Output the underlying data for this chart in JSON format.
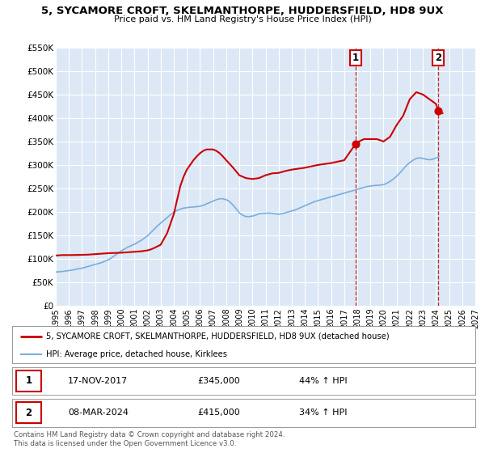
{
  "title": "5, SYCAMORE CROFT, SKELMANTHORPE, HUDDERSFIELD, HD8 9UX",
  "subtitle": "Price paid vs. HM Land Registry's House Price Index (HPI)",
  "hpi_label": "HPI: Average price, detached house, Kirklees",
  "property_label": "5, SYCAMORE CROFT, SKELMANTHORPE, HUDDERSFIELD, HD8 9UX (detached house)",
  "hpi_color": "#7aaddc",
  "property_color": "#cc0000",
  "plot_bg_color": "#dce8f5",
  "grid_color": "#ffffff",
  "ylim": [
    0,
    550000
  ],
  "xlim_start": 1995,
  "xlim_end": 2027,
  "yticks": [
    0,
    50000,
    100000,
    150000,
    200000,
    250000,
    300000,
    350000,
    400000,
    450000,
    500000,
    550000
  ],
  "ytick_labels": [
    "£0",
    "£50K",
    "£100K",
    "£150K",
    "£200K",
    "£250K",
    "£300K",
    "£350K",
    "£400K",
    "£450K",
    "£500K",
    "£550K"
  ],
  "xticks": [
    1995,
    1996,
    1997,
    1998,
    1999,
    2000,
    2001,
    2002,
    2003,
    2004,
    2005,
    2006,
    2007,
    2008,
    2009,
    2010,
    2011,
    2012,
    2013,
    2014,
    2015,
    2016,
    2017,
    2018,
    2019,
    2020,
    2021,
    2022,
    2023,
    2024,
    2025,
    2026,
    2027
  ],
  "sale1_year": 2017.88,
  "sale1_price": 345000,
  "sale1_date": "17-NOV-2017",
  "sale1_label": "44% ↑ HPI",
  "sale2_year": 2024.18,
  "sale2_price": 415000,
  "sale2_date": "08-MAR-2024",
  "sale2_label": "34% ↑ HPI",
  "hpi_x": [
    1995.0,
    1995.25,
    1995.5,
    1995.75,
    1996.0,
    1996.25,
    1996.5,
    1996.75,
    1997.0,
    1997.25,
    1997.5,
    1997.75,
    1998.0,
    1998.25,
    1998.5,
    1998.75,
    1999.0,
    1999.25,
    1999.5,
    1999.75,
    2000.0,
    2000.25,
    2000.5,
    2000.75,
    2001.0,
    2001.25,
    2001.5,
    2001.75,
    2002.0,
    2002.25,
    2002.5,
    2002.75,
    2003.0,
    2003.25,
    2003.5,
    2003.75,
    2004.0,
    2004.25,
    2004.5,
    2004.75,
    2005.0,
    2005.25,
    2005.5,
    2005.75,
    2006.0,
    2006.25,
    2006.5,
    2006.75,
    2007.0,
    2007.25,
    2007.5,
    2007.75,
    2008.0,
    2008.25,
    2008.5,
    2008.75,
    2009.0,
    2009.25,
    2009.5,
    2009.75,
    2010.0,
    2010.25,
    2010.5,
    2010.75,
    2011.0,
    2011.25,
    2011.5,
    2011.75,
    2012.0,
    2012.25,
    2012.5,
    2012.75,
    2013.0,
    2013.25,
    2013.5,
    2013.75,
    2014.0,
    2014.25,
    2014.5,
    2014.75,
    2015.0,
    2015.25,
    2015.5,
    2015.75,
    2016.0,
    2016.25,
    2016.5,
    2016.75,
    2017.0,
    2017.25,
    2017.5,
    2017.75,
    2018.0,
    2018.25,
    2018.5,
    2018.75,
    2019.0,
    2019.25,
    2019.5,
    2019.75,
    2020.0,
    2020.25,
    2020.5,
    2020.75,
    2021.0,
    2021.25,
    2021.5,
    2021.75,
    2022.0,
    2022.25,
    2022.5,
    2022.75,
    2023.0,
    2023.25,
    2023.5,
    2023.75,
    2024.0,
    2024.25
  ],
  "hpi_y": [
    72000,
    72500,
    73000,
    74000,
    75000,
    76000,
    77500,
    79000,
    80000,
    82000,
    84000,
    86000,
    88000,
    90000,
    92000,
    95000,
    98000,
    102000,
    107000,
    112000,
    117000,
    121000,
    125000,
    128000,
    131000,
    135000,
    139000,
    144000,
    149000,
    156000,
    163000,
    170000,
    176000,
    182000,
    188000,
    194000,
    199000,
    203000,
    206000,
    208000,
    209000,
    210000,
    210500,
    211000,
    212000,
    214000,
    217000,
    220000,
    223000,
    226000,
    228000,
    228000,
    226000,
    222000,
    215000,
    207000,
    198000,
    193000,
    190000,
    190000,
    191000,
    193000,
    196000,
    197000,
    197000,
    197500,
    197000,
    196000,
    195000,
    196000,
    198000,
    200000,
    202000,
    204000,
    207000,
    210000,
    213000,
    216000,
    219000,
    222000,
    224000,
    226000,
    228000,
    230000,
    232000,
    234000,
    236000,
    238000,
    240000,
    242000,
    244000,
    246000,
    248000,
    250000,
    252000,
    254000,
    255000,
    256000,
    256500,
    257000,
    258000,
    261000,
    265000,
    270000,
    276000,
    283000,
    291000,
    299000,
    305000,
    310000,
    314000,
    315000,
    314000,
    312000,
    311000,
    312000,
    315000,
    318000
  ],
  "property_x": [
    1995.0,
    1995.5,
    1996.0,
    1997.0,
    1997.5,
    1998.0,
    1998.5,
    1999.0,
    2000.0,
    2000.5,
    2001.0,
    2001.5,
    2002.0,
    2002.25,
    2002.5,
    2003.0,
    2003.5,
    2003.75,
    2004.0,
    2004.25,
    2004.5,
    2004.75,
    2005.0,
    2005.25,
    2005.5,
    2005.75,
    2006.0,
    2006.25,
    2006.5,
    2007.0,
    2007.25,
    2007.5,
    2007.75,
    2008.0,
    2008.5,
    2009.0,
    2009.5,
    2010.0,
    2010.5,
    2011.0,
    2011.5,
    2012.0,
    2012.5,
    2013.0,
    2013.5,
    2014.0,
    2014.5,
    2015.0,
    2015.5,
    2016.0,
    2016.5,
    2017.0,
    2017.5,
    2017.88,
    2018.0,
    2018.5,
    2019.0,
    2019.5,
    2020.0,
    2020.5,
    2021.0,
    2021.5,
    2022.0,
    2022.5,
    2023.0,
    2023.5,
    2024.0,
    2024.18,
    2024.5
  ],
  "property_y": [
    107000,
    108000,
    108000,
    108500,
    109000,
    110000,
    111000,
    112000,
    113000,
    114000,
    115000,
    116000,
    118000,
    120000,
    123000,
    130000,
    155000,
    175000,
    195000,
    225000,
    255000,
    275000,
    290000,
    300000,
    310000,
    318000,
    325000,
    330000,
    333000,
    333000,
    330000,
    325000,
    318000,
    310000,
    295000,
    278000,
    272000,
    270000,
    272000,
    278000,
    282000,
    283000,
    287000,
    290000,
    292000,
    294000,
    297000,
    300000,
    302000,
    304000,
    307000,
    310000,
    330000,
    345000,
    348000,
    355000,
    355000,
    355000,
    350000,
    360000,
    385000,
    405000,
    440000,
    455000,
    450000,
    440000,
    430000,
    415000,
    410000
  ]
}
